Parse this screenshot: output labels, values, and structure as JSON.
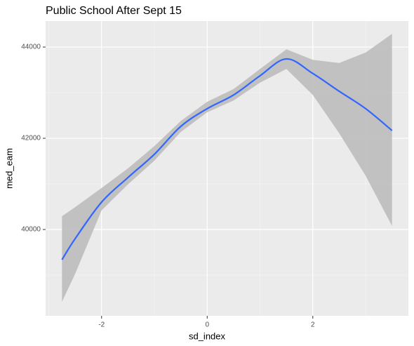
{
  "chart_data": {
    "type": "smooth",
    "title": "Public School After Sept 15",
    "x_label": "sd_index",
    "y_label": "med_eam",
    "x": [
      -2.75,
      -2.5,
      -2,
      -1.5,
      -1,
      -0.5,
      0,
      0.5,
      1,
      1.5,
      2,
      2.5,
      3,
      3.5
    ],
    "series": [
      {
        "color": "#3366ff",
        "values": [
          39338,
          39800,
          40600,
          41140,
          41650,
          42260,
          42650,
          42950,
          43370,
          43740,
          43420,
          43030,
          42650,
          42170
        ],
        "lower": [
          38415,
          39030,
          40420,
          40990,
          41510,
          42140,
          42570,
          42830,
          43220,
          43520,
          42950,
          42110,
          41180,
          40080
        ],
        "upper": [
          40290,
          40490,
          40910,
          41340,
          41830,
          42380,
          42800,
          43080,
          43520,
          43950,
          43720,
          43650,
          43880,
          44290
        ],
        "band_color": "#bdbdbd"
      }
    ],
    "xlim": [
      -3.06,
      3.81
    ],
    "xticks": [
      -2,
      0,
      2
    ],
    "x_minor_breaks": [
      -3,
      -1,
      1,
      3
    ],
    "ylim": [
      38108,
      44570
    ],
    "yticks": [
      40000,
      42000,
      44000
    ],
    "y_minor_breaks": [
      39000,
      41000,
      43000
    ],
    "grid": true
  }
}
